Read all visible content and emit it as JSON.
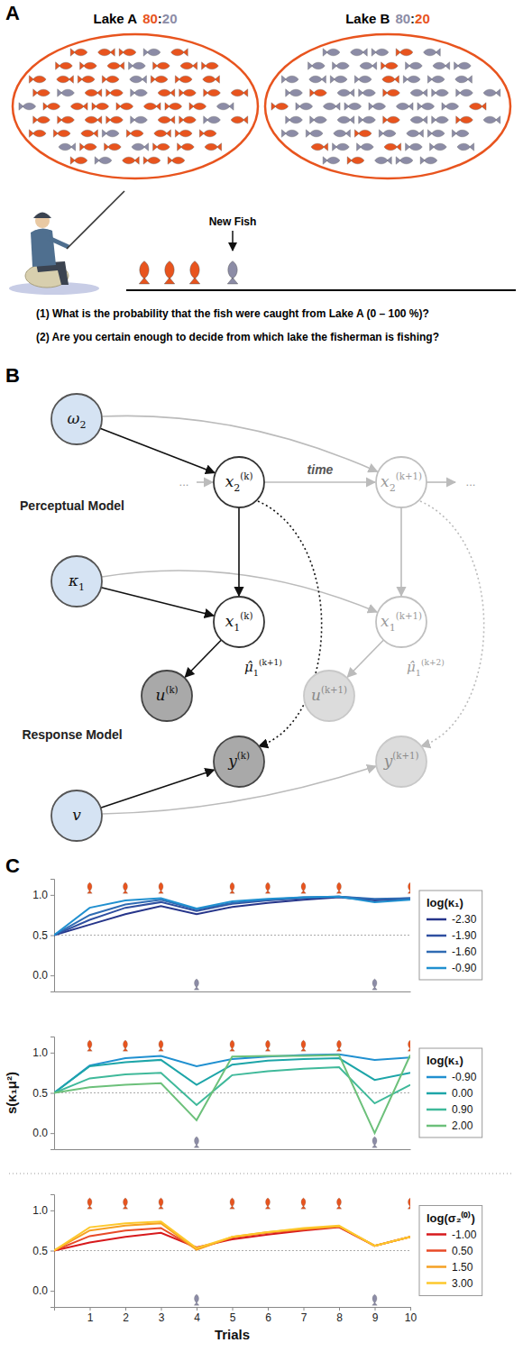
{
  "panel_a": {
    "label": "A",
    "lakes": [
      {
        "name": "Lake A",
        "counts": [
          80,
          20
        ],
        "colors": [
          "#e8541e",
          "#8c8ca6"
        ],
        "separator": ":"
      },
      {
        "name": "Lake B",
        "counts": [
          80,
          20
        ],
        "colors": [
          "#8c8ca6",
          "#e8541e"
        ],
        "separator": ":"
      }
    ],
    "caught": [
      1,
      1,
      1,
      0
    ],
    "new_fish_label": "New Fish",
    "questions": [
      "(1) What is the probability that the fish were caught from Lake A (0 – 100 %)?",
      "(2) Are you certain enough to decide from which lake the fisherman is fishing?"
    ]
  },
  "panel_b": {
    "label": "B",
    "nodes": [
      {
        "label": {
          "base": "ω",
          "sub": "2"
        }
      },
      {
        "label": {
          "base": "x",
          "sub": "2",
          "sup": "(k)"
        }
      },
      {
        "label": {
          "base": "x",
          "sub": "2",
          "sup": "(k+1)"
        }
      },
      {
        "label": {
          "base": "κ",
          "sub": "1"
        }
      },
      {
        "label": {
          "base": "x",
          "sub": "1",
          "sup": "(k)"
        }
      },
      {
        "label": {
          "base": "x",
          "sub": "1",
          "sup": "(k+1)"
        }
      },
      {
        "label": {
          "base": "u",
          "sup": "(k)"
        }
      },
      {
        "label": {
          "base": "u",
          "sup": "(k+1)"
        }
      },
      {
        "label": {
          "base": "y",
          "sup": "(k)"
        }
      },
      {
        "label": {
          "base": "y",
          "sup": "(k+1)"
        }
      },
      {
        "label": {
          "base": "v"
        }
      }
    ],
    "predictions": [
      {
        "base": "μ̂",
        "sub": "1",
        "sup": "(k+1)"
      },
      {
        "base": "μ̂",
        "sub": "1",
        "sup": "(k+2)"
      }
    ],
    "model_labels": [
      "Perceptual Model",
      "Response Model"
    ],
    "time_label": "time",
    "continuation": "..."
  },
  "panel_c": {
    "label": "C"
  },
  "chart_data": [
    {
      "type": "line",
      "x": [
        0,
        1,
        2,
        3,
        4,
        5,
        6,
        7,
        8,
        9,
        10
      ],
      "xlim": [
        0,
        10
      ],
      "xticks": [
        1,
        2,
        3,
        4,
        5,
        6,
        7,
        8,
        9,
        10
      ],
      "ylim": [
        -0.2,
        1.2
      ],
      "yticks": [
        {
          "value": 0,
          "label": "0.0"
        },
        {
          "value": 0.5,
          "label": "0.5"
        },
        {
          "value": 1,
          "label": "1.0"
        }
      ],
      "tick_labels": "y",
      "legend": "right",
      "legend_title": "log(κ₁)",
      "reference_y": 0.5,
      "input_trials": [
        1,
        2,
        3,
        4,
        5,
        6,
        7,
        8,
        9,
        10
      ],
      "inputs": [
        1,
        1,
        1,
        0,
        1,
        1,
        1,
        1,
        0,
        1
      ],
      "series": [
        {
          "name": "-2.30",
          "color": "#26358a",
          "values": [
            0.5,
            0.63,
            0.76,
            0.86,
            0.76,
            0.85,
            0.9,
            0.94,
            0.97,
            0.93,
            0.95
          ]
        },
        {
          "name": "-1.90",
          "color": "#2f4fa0",
          "values": [
            0.5,
            0.69,
            0.84,
            0.91,
            0.8,
            0.89,
            0.93,
            0.96,
            0.98,
            0.94,
            0.96
          ]
        },
        {
          "name": "-1.60",
          "color": "#2f6bb3",
          "values": [
            0.5,
            0.75,
            0.88,
            0.94,
            0.82,
            0.9,
            0.94,
            0.97,
            0.98,
            0.95,
            0.96
          ]
        },
        {
          "name": "-0.90",
          "color": "#2090d0",
          "values": [
            0.5,
            0.84,
            0.93,
            0.96,
            0.83,
            0.92,
            0.95,
            0.97,
            0.98,
            0.91,
            0.94
          ]
        }
      ]
    },
    {
      "type": "line",
      "x": [
        0,
        1,
        2,
        3,
        4,
        5,
        6,
        7,
        8,
        9,
        10
      ],
      "xlim": [
        0,
        10
      ],
      "xticks": [
        1,
        2,
        3,
        4,
        5,
        6,
        7,
        8,
        9,
        10
      ],
      "ylim": [
        -0.2,
        1.2
      ],
      "yticks": [
        {
          "value": 0,
          "label": "0.0"
        },
        {
          "value": 0.5,
          "label": "0.5"
        },
        {
          "value": 1,
          "label": "1.0"
        }
      ],
      "tick_labels": "y",
      "legend": "right",
      "legend_title": "log(κ₁)",
      "reference_y": 0.5,
      "y_label": "s(κ₁μ²)",
      "input_trials": [
        1,
        2,
        3,
        4,
        5,
        6,
        7,
        8,
        9,
        10
      ],
      "inputs": [
        1,
        1,
        1,
        0,
        1,
        1,
        1,
        1,
        0,
        1
      ],
      "series": [
        {
          "name": "-0.90",
          "color": "#2090d0",
          "values": [
            0.5,
            0.84,
            0.93,
            0.96,
            0.83,
            0.92,
            0.95,
            0.97,
            0.98,
            0.91,
            0.94
          ]
        },
        {
          "name": "0.00",
          "color": "#1da5a8",
          "values": [
            0.5,
            0.83,
            0.88,
            0.91,
            0.6,
            0.85,
            0.9,
            0.92,
            0.93,
            0.66,
            0.75
          ]
        },
        {
          "name": "0.90",
          "color": "#3fb99a",
          "values": [
            0.5,
            0.68,
            0.73,
            0.75,
            0.35,
            0.72,
            0.77,
            0.8,
            0.82,
            0.37,
            0.6
          ]
        },
        {
          "name": "2.00",
          "color": "#6cc07a",
          "values": [
            0.5,
            0.57,
            0.6,
            0.62,
            0.16,
            0.95,
            0.96,
            0.96,
            0.97,
            0.0,
            0.97
          ]
        }
      ]
    },
    {
      "type": "line",
      "x": [
        0,
        1,
        2,
        3,
        4,
        5,
        6,
        7,
        8,
        9,
        10
      ],
      "xlim": [
        0,
        10
      ],
      "xticks": [
        1,
        2,
        3,
        4,
        5,
        6,
        7,
        8,
        9,
        10
      ],
      "ylim": [
        -0.2,
        1.2
      ],
      "yticks": [
        {
          "value": 0,
          "label": "0.0"
        },
        {
          "value": 0.5,
          "label": "0.5"
        },
        {
          "value": 1,
          "label": "1.0"
        }
      ],
      "legend": "right",
      "legend_title": "log(σ₂⁽⁰⁾)",
      "reference_y": 0.5,
      "x_label": "Trials",
      "input_trials": [
        1,
        2,
        3,
        4,
        5,
        6,
        7,
        8,
        9,
        10
      ],
      "inputs": [
        1,
        1,
        1,
        0,
        1,
        1,
        1,
        1,
        0,
        1
      ],
      "series": [
        {
          "name": "-1.00",
          "color": "#d7191c",
          "values": [
            0.5,
            0.6,
            0.67,
            0.72,
            0.54,
            0.64,
            0.7,
            0.75,
            0.79,
            0.56,
            0.67
          ]
        },
        {
          "name": "0.50",
          "color": "#e84a27",
          "values": [
            0.5,
            0.68,
            0.75,
            0.78,
            0.52,
            0.66,
            0.72,
            0.76,
            0.8,
            0.56,
            0.67
          ]
        },
        {
          "name": "1.50",
          "color": "#f5a023",
          "values": [
            0.5,
            0.75,
            0.81,
            0.84,
            0.51,
            0.67,
            0.73,
            0.77,
            0.8,
            0.56,
            0.67
          ]
        },
        {
          "name": "3.00",
          "color": "#fdc82c",
          "values": [
            0.5,
            0.79,
            0.84,
            0.86,
            0.53,
            0.67,
            0.73,
            0.78,
            0.81,
            0.56,
            0.67
          ]
        }
      ]
    }
  ]
}
